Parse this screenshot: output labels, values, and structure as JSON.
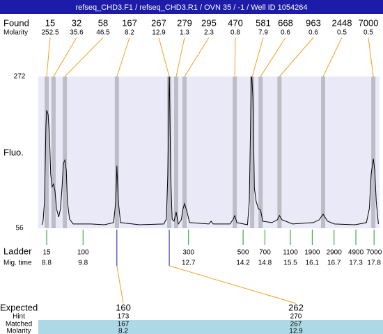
{
  "header": {
    "title": "refseq_CHD3.F1 / refseq_CHD3.R1 / OVN 35 / -1 / Well ID 1054264"
  },
  "chart_data": {
    "type": "electropherogram",
    "y_label": "Fluo.",
    "ylim": [
      56,
      272
    ],
    "yticks": [
      56,
      272
    ],
    "xlim": [
      8.57,
      17.95
    ],
    "found": {
      "label": "Found",
      "sizes": [
        15,
        32,
        58,
        167,
        267,
        279,
        295,
        470,
        581,
        668,
        963,
        2448,
        7000
      ],
      "molarity_label": "Molarity",
      "molarity": [
        252.5,
        35.6,
        46.5,
        8.2,
        12.9,
        1.3,
        2.3,
        0.8,
        7.9,
        0.6,
        0.6,
        0.5,
        0.5
      ],
      "times": [
        8.8,
        8.99,
        9.3,
        10.73,
        12.17,
        12.36,
        12.59,
        13.97,
        14.45,
        14.68,
        15.2,
        16.4,
        17.78
      ]
    },
    "ladder": {
      "label": "Ladder",
      "sizes": [
        15,
        100,
        300,
        500,
        700,
        1100,
        1900,
        2900,
        4900,
        7000
      ],
      "time_label": "Mig. time",
      "times": [
        8.8,
        9.8,
        12.7,
        14.2,
        14.8,
        15.5,
        16.1,
        16.7,
        17.3,
        17.8
      ]
    },
    "trace": {
      "x": [
        8.67,
        8.7,
        8.74,
        8.78,
        8.8,
        8.84,
        8.88,
        8.91,
        8.95,
        8.99,
        9.03,
        9.07,
        9.13,
        9.18,
        9.22,
        9.26,
        9.3,
        9.34,
        9.37,
        9.43,
        9.53,
        10.01,
        10.39,
        10.64,
        10.7,
        10.73,
        10.77,
        10.83,
        11.35,
        12.02,
        12.09,
        12.13,
        12.17,
        12.21,
        12.25,
        12.3,
        12.36,
        12.42,
        12.5,
        12.55,
        12.59,
        12.65,
        12.73,
        13.26,
        13.32,
        13.38,
        13.84,
        13.93,
        13.97,
        14.03,
        14.32,
        14.37,
        14.43,
        14.47,
        14.51,
        14.56,
        14.62,
        14.68,
        14.74,
        14.99,
        15.14,
        15.2,
        15.27,
        15.56,
        16.13,
        16.29,
        16.4,
        16.52,
        16.71,
        17.28,
        17.59,
        17.67,
        17.72,
        17.78,
        17.82,
        17.86,
        17.92
      ],
      "y": [
        61,
        66,
        94,
        203,
        224,
        218,
        183,
        133,
        115,
        119,
        109,
        84,
        72,
        84,
        113,
        148,
        153,
        138,
        94,
        69,
        62,
        62,
        61,
        64,
        94,
        145,
        94,
        64,
        61,
        62,
        69,
        133,
        282,
        133,
        69,
        66,
        79,
        62,
        68,
        84,
        91,
        81,
        64,
        62,
        66,
        62,
        62,
        69,
        74,
        64,
        61,
        94,
        282,
        242,
        113,
        94,
        84,
        82,
        66,
        64,
        68,
        74,
        68,
        62,
        64,
        68,
        76,
        66,
        62,
        61,
        64,
        84,
        133,
        155,
        138,
        94,
        62
      ]
    },
    "matches": {
      "expected_label": "Expected",
      "expected": [
        160,
        262
      ],
      "hint_label": "Hint",
      "hint": [
        173,
        270
      ],
      "matched_label": "Matched",
      "matched": [
        167,
        267
      ],
      "molarity_label": "Molarity",
      "molarity": [
        8.2,
        12.9
      ]
    }
  }
}
